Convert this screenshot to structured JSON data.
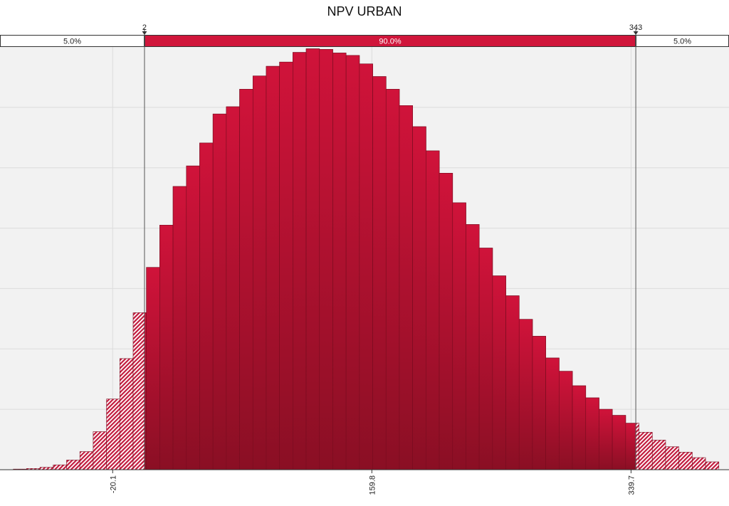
{
  "chart_data": {
    "type": "bar",
    "title": "NPV URBAN",
    "xlabel": "",
    "ylabel": "",
    "x_ticks": [
      -20.1,
      159.8,
      339.7
    ],
    "x_tick_labels": [
      "-20.1",
      "159.8",
      "339.7"
    ],
    "xlim": [
      -98.3,
      407.7
    ],
    "ylim": [
      0,
      7
    ],
    "grid": true,
    "bin_width": 9.24,
    "bin_starts": [
      -98.3,
      -89.06,
      -79.82,
      -70.58,
      -61.34,
      -52.1,
      -42.86,
      -33.62,
      -24.38,
      -15.14,
      -5.9,
      3.34,
      12.58,
      21.82,
      31.06,
      40.3,
      49.54,
      58.78,
      68.02,
      77.26,
      86.5,
      95.74,
      104.98,
      114.22,
      123.46,
      132.7,
      141.94,
      151.18,
      160.42,
      169.66,
      178.9,
      188.14,
      197.38,
      206.62,
      215.86,
      225.1,
      234.34,
      243.58,
      252.82,
      262.06,
      271.3,
      280.54,
      289.78,
      299.02,
      308.26,
      317.5,
      326.74,
      335.98,
      345.22,
      354.46,
      363.7,
      372.94,
      382.18,
      391.42
    ],
    "values": [
      0.0,
      0.01,
      0.02,
      0.04,
      0.08,
      0.16,
      0.3,
      0.63,
      1.17,
      1.84,
      2.6,
      3.35,
      4.05,
      4.69,
      5.03,
      5.41,
      5.89,
      6.01,
      6.3,
      6.52,
      6.68,
      6.75,
      6.91,
      6.97,
      6.96,
      6.9,
      6.86,
      6.72,
      6.51,
      6.3,
      6.03,
      5.68,
      5.28,
      4.91,
      4.42,
      4.06,
      3.67,
      3.21,
      2.88,
      2.49,
      2.21,
      1.85,
      1.63,
      1.39,
      1.19,
      1.0,
      0.9,
      0.77,
      0.62,
      0.49,
      0.38,
      0.29,
      0.2,
      0.13
    ],
    "delimiters": {
      "left": {
        "value": "2",
        "x": 2
      },
      "right": {
        "value": "343",
        "x": 343
      }
    },
    "regions": [
      {
        "label": "5.0%"
      },
      {
        "label": "90.0%"
      },
      {
        "label": "5.0%"
      }
    ],
    "colors": {
      "bar_fill_top": "#d0133a",
      "bar_fill_bottom": "#8a0f24",
      "bar_stroke": "#7a0d20",
      "tail_hatch": "#c21a3d",
      "band_center": "#d0163b",
      "plot_bg": "#f2f2f2",
      "grid": "#dcdcdc"
    }
  }
}
